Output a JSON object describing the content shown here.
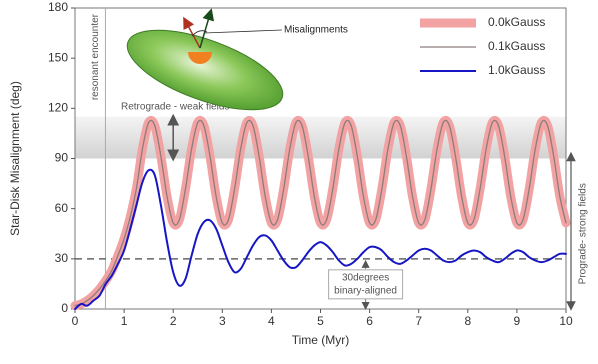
{
  "chart_data": {
    "type": "line",
    "x_label": "Time (Myr)",
    "y_label": "Star-Disk Misalignment (deg)",
    "xlim": [
      0,
      10
    ],
    "ylim": [
      0,
      180
    ],
    "xticks": [
      0,
      1,
      2,
      3,
      4,
      5,
      6,
      7,
      8,
      9,
      10
    ],
    "yticks": [
      0,
      30,
      60,
      90,
      120,
      150,
      180
    ],
    "x": [
      0,
      0.125,
      0.25,
      0.375,
      0.5,
      0.625,
      0.75,
      0.875,
      1,
      1.125,
      1.25,
      1.375,
      1.5,
      1.625,
      1.75,
      1.875,
      2,
      2.125,
      2.25,
      2.375,
      2.5,
      2.625,
      2.75,
      2.875,
      3,
      3.125,
      3.25,
      3.375,
      3.5,
      3.625,
      3.75,
      3.875,
      4,
      4.125,
      4.25,
      4.375,
      4.5,
      4.625,
      4.75,
      4.875,
      5,
      5.125,
      5.25,
      5.375,
      5.5,
      5.625,
      5.75,
      5.875,
      6,
      6.125,
      6.25,
      6.375,
      6.5,
      6.625,
      6.75,
      6.875,
      7,
      7.125,
      7.25,
      7.375,
      7.5,
      7.625,
      7.75,
      7.875,
      8,
      8.125,
      8.25,
      8.375,
      8.5,
      8.625,
      8.75,
      8.875,
      9,
      9.125,
      9.25,
      9.375,
      9.5,
      9.625,
      9.75,
      9.875,
      10
    ],
    "series": [
      {
        "name": "0.0kGauss",
        "color": "#f2a2a2",
        "values": [
          2,
          3,
          5,
          8,
          12,
          17,
          23,
          32,
          42,
          55,
          72,
          96,
          111.5,
          109.6,
          91.2,
          67.2,
          51.5,
          53.4,
          71.8,
          95.8,
          111.5,
          109.6,
          91.2,
          67.2,
          51.5,
          53.4,
          71.8,
          95.8,
          111.5,
          109.6,
          91.2,
          67.2,
          51.5,
          53.4,
          71.8,
          95.8,
          111.5,
          109.6,
          91.2,
          67.2,
          51.5,
          53.4,
          71.8,
          95.8,
          111.5,
          109.6,
          91.2,
          67.2,
          51.5,
          53.4,
          71.8,
          95.8,
          111.5,
          109.6,
          91.2,
          67.2,
          51.5,
          53.4,
          71.8,
          95.8,
          111.5,
          109.6,
          91.2,
          67.2,
          51.5,
          53.4,
          71.8,
          95.8,
          111.5,
          109.6,
          91.2,
          67.2,
          51.5,
          53.4,
          71.8,
          95.8,
          111.5,
          109.6,
          91.2,
          67.2,
          51.5
        ]
      },
      {
        "name": "0.1kGauss",
        "color": "#8c7c7c",
        "values": [
          2,
          3,
          5,
          8,
          12,
          17,
          23,
          32,
          42,
          55,
          72,
          96,
          111.5,
          109.6,
          91.2,
          67.2,
          51.5,
          53.4,
          71.8,
          95.8,
          111.5,
          109.6,
          91.2,
          67.2,
          51.5,
          53.4,
          71.8,
          95.8,
          111.5,
          109.6,
          91.2,
          67.2,
          51.5,
          53.4,
          71.8,
          95.8,
          111.5,
          109.6,
          91.2,
          67.2,
          51.5,
          53.4,
          71.8,
          95.8,
          111.5,
          109.6,
          91.2,
          67.2,
          51.5,
          53.4,
          71.8,
          95.8,
          111.5,
          109.6,
          91.2,
          67.2,
          51.5,
          53.4,
          71.8,
          95.8,
          111.5,
          109.6,
          91.2,
          67.2,
          51.5,
          53.4,
          71.8,
          95.8,
          111.5,
          109.6,
          91.2,
          67.2,
          51.5,
          53.4,
          71.8,
          95.8,
          111.5,
          109.6,
          91.2,
          67.2,
          51.5
        ]
      },
      {
        "name": "1.0kGauss",
        "color": "#1616c4",
        "values": [
          0,
          3,
          2,
          5,
          8,
          15,
          20,
          27,
          35,
          48,
          62,
          76,
          83,
          80,
          62,
          40,
          22,
          14,
          18,
          32,
          45,
          52,
          53,
          48,
          38,
          28,
          22,
          24,
          31,
          38,
          43,
          44,
          41,
          35,
          29,
          25,
          25,
          29,
          34,
          38,
          40,
          38,
          34,
          29,
          26,
          27,
          30,
          34,
          37,
          37,
          35,
          31,
          28,
          27,
          29,
          32,
          35,
          36,
          35,
          32,
          29,
          28,
          29,
          32,
          34,
          35,
          34,
          31,
          29,
          28,
          30,
          33,
          35,
          34,
          31,
          29,
          28,
          29,
          31,
          33,
          33
        ]
      }
    ],
    "reference_line": 30,
    "band": [
      90,
      115
    ],
    "event_x": 0.62,
    "annotations": {
      "resonant": "resonant encounter",
      "retrograde": "Retrograde - weak fields",
      "aligned": [
        "30degrees",
        "binary-aligned"
      ],
      "prograde": "Prograde- strong fields",
      "misalignments": "Misalignments"
    }
  }
}
